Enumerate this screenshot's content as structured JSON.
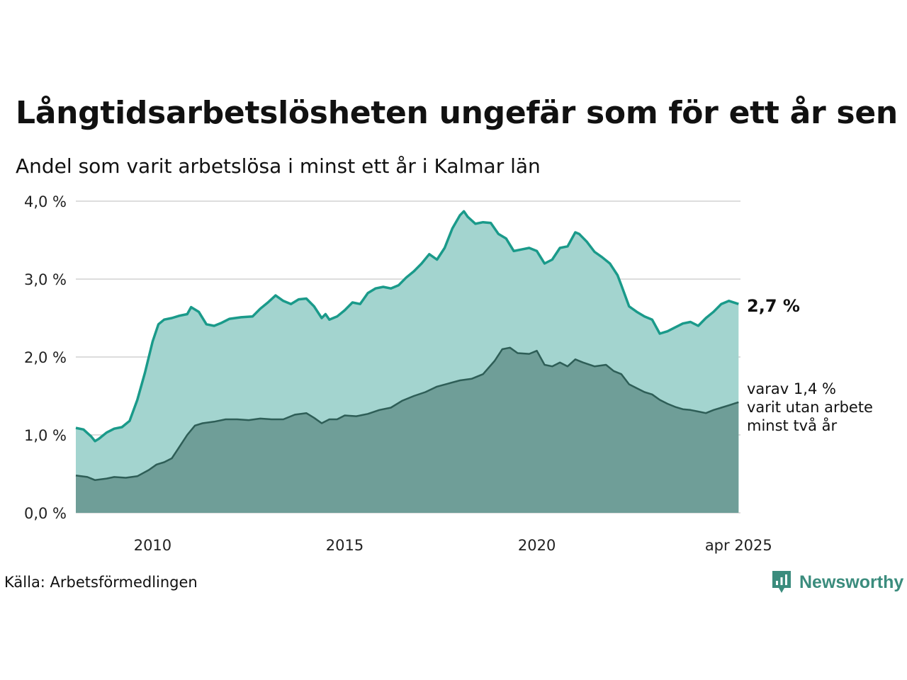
{
  "title": "Långtidsarbetslösheten ungefär som för ett år sen",
  "subtitle": "Andel som varit arbetslösa i minst ett år i Kalmar län",
  "source": "Källa: Arbetsförmedlingen",
  "brand": "Newsworthy",
  "colors": {
    "total_line": "#1a9a8a",
    "total_fill": "#a3d4cf",
    "sub_line": "#2e5e57",
    "sub_fill": "#6f9e98",
    "grid": "#dddddd",
    "brand": "#3b8c7d"
  },
  "icons": {
    "logo": "chart-bubble-icon"
  },
  "chart_data": {
    "type": "area",
    "xlim": [
      2008.0,
      2025.3
    ],
    "ylim": [
      0,
      4.0
    ],
    "y_ticks": [
      0,
      1,
      2,
      3,
      4
    ],
    "y_tick_labels": [
      "0,0 %",
      "1,0 %",
      "2,0 %",
      "3,0 %",
      "4,0 %"
    ],
    "x_ticks": [
      2010,
      2015,
      2020,
      2025.25
    ],
    "x_tick_labels": [
      "2010",
      "2015",
      "2020",
      "apr 2025"
    ],
    "grid": true,
    "series": [
      {
        "label": "2,7 %",
        "x": [
          2008.0,
          2008.2,
          2008.4,
          2008.5,
          2008.6,
          2008.8,
          2009.0,
          2009.2,
          2009.4,
          2009.6,
          2009.8,
          2010.0,
          2010.15,
          2010.3,
          2010.5,
          2010.7,
          2010.9,
          2011.0,
          2011.2,
          2011.4,
          2011.6,
          2011.8,
          2012.0,
          2012.3,
          2012.6,
          2012.8,
          2013.0,
          2013.2,
          2013.4,
          2013.6,
          2013.8,
          2014.0,
          2014.2,
          2014.4,
          2014.5,
          2014.6,
          2014.8,
          2015.0,
          2015.2,
          2015.4,
          2015.6,
          2015.8,
          2016.0,
          2016.2,
          2016.4,
          2016.6,
          2016.8,
          2017.0,
          2017.2,
          2017.4,
          2017.6,
          2017.8,
          2018.0,
          2018.1,
          2018.2,
          2018.4,
          2018.6,
          2018.8,
          2019.0,
          2019.2,
          2019.4,
          2019.6,
          2019.8,
          2020.0,
          2020.2,
          2020.4,
          2020.6,
          2020.8,
          2021.0,
          2021.1,
          2021.3,
          2021.5,
          2021.7,
          2021.9,
          2022.1,
          2022.2,
          2022.4,
          2022.6,
          2022.8,
          2023.0,
          2023.2,
          2023.4,
          2023.6,
          2023.8,
          2024.0,
          2024.2,
          2024.4,
          2024.6,
          2024.8,
          2025.0,
          2025.25
        ],
        "values": [
          1.09,
          1.07,
          0.98,
          0.92,
          0.95,
          1.03,
          1.08,
          1.1,
          1.18,
          1.45,
          1.8,
          2.2,
          2.42,
          2.48,
          2.5,
          2.53,
          2.55,
          2.64,
          2.58,
          2.42,
          2.4,
          2.44,
          2.49,
          2.51,
          2.52,
          2.62,
          2.7,
          2.79,
          2.72,
          2.68,
          2.74,
          2.75,
          2.65,
          2.5,
          2.55,
          2.48,
          2.52,
          2.6,
          2.7,
          2.68,
          2.82,
          2.88,
          2.9,
          2.88,
          2.92,
          3.02,
          3.1,
          3.2,
          3.32,
          3.25,
          3.4,
          3.65,
          3.82,
          3.87,
          3.8,
          3.71,
          3.73,
          3.72,
          3.58,
          3.52,
          3.36,
          3.38,
          3.4,
          3.36,
          3.2,
          3.25,
          3.4,
          3.42,
          3.6,
          3.58,
          3.48,
          3.35,
          3.28,
          3.2,
          3.05,
          2.92,
          2.65,
          2.58,
          2.52,
          2.48,
          2.3,
          2.33,
          2.38,
          2.43,
          2.45,
          2.4,
          2.5,
          2.58,
          2.68,
          2.72,
          2.68
        ]
      },
      {
        "label": "varav 1,4 % varit utan arbete minst två år",
        "x": [
          2008.0,
          2008.3,
          2008.5,
          2008.8,
          2009.0,
          2009.3,
          2009.6,
          2009.9,
          2010.1,
          2010.3,
          2010.5,
          2010.7,
          2010.9,
          2011.1,
          2011.3,
          2011.6,
          2011.9,
          2012.2,
          2012.5,
          2012.8,
          2013.1,
          2013.4,
          2013.7,
          2014.0,
          2014.2,
          2014.4,
          2014.6,
          2014.8,
          2015.0,
          2015.3,
          2015.6,
          2015.9,
          2016.2,
          2016.5,
          2016.8,
          2017.1,
          2017.4,
          2017.7,
          2018.0,
          2018.3,
          2018.6,
          2018.9,
          2019.1,
          2019.3,
          2019.5,
          2019.8,
          2020.0,
          2020.2,
          2020.4,
          2020.6,
          2020.8,
          2021.0,
          2021.2,
          2021.5,
          2021.8,
          2022.0,
          2022.2,
          2022.4,
          2022.6,
          2022.8,
          2023.0,
          2023.2,
          2023.4,
          2023.6,
          2023.8,
          2024.0,
          2024.2,
          2024.4,
          2024.6,
          2024.8,
          2025.0,
          2025.25
        ],
        "values": [
          0.48,
          0.46,
          0.42,
          0.44,
          0.46,
          0.45,
          0.47,
          0.55,
          0.62,
          0.65,
          0.7,
          0.85,
          1.0,
          1.12,
          1.15,
          1.17,
          1.2,
          1.2,
          1.19,
          1.21,
          1.2,
          1.2,
          1.26,
          1.28,
          1.22,
          1.15,
          1.2,
          1.2,
          1.25,
          1.24,
          1.27,
          1.32,
          1.35,
          1.44,
          1.5,
          1.55,
          1.62,
          1.66,
          1.7,
          1.72,
          1.78,
          1.95,
          2.1,
          2.12,
          2.05,
          2.04,
          2.08,
          1.9,
          1.88,
          1.93,
          1.88,
          1.97,
          1.93,
          1.88,
          1.9,
          1.82,
          1.78,
          1.65,
          1.6,
          1.55,
          1.52,
          1.45,
          1.4,
          1.36,
          1.33,
          1.32,
          1.3,
          1.28,
          1.32,
          1.35,
          1.38,
          1.42
        ]
      }
    ],
    "annotations": {
      "total_end": "2,7 %",
      "sub_end_lines": [
        "varav 1,4 %",
        "varit utan arbete",
        "minst två år"
      ]
    }
  }
}
